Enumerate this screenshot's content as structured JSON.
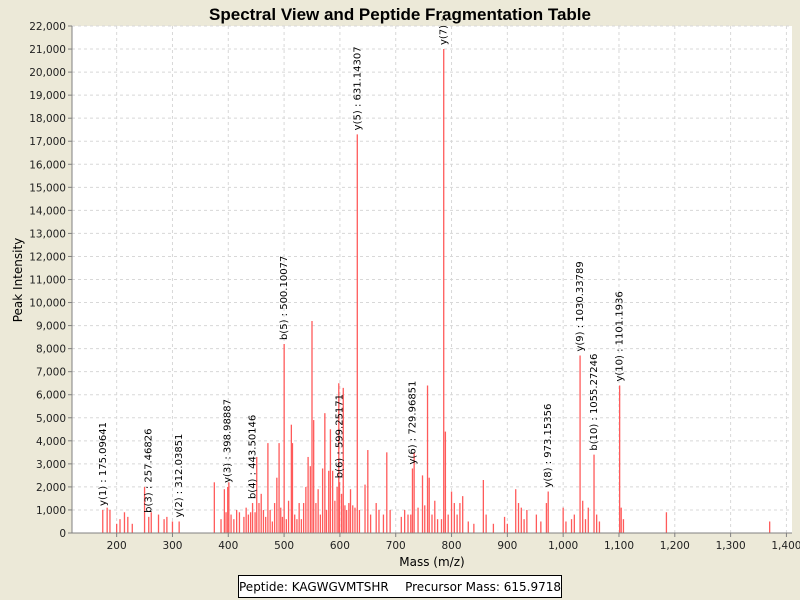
{
  "chart_data": {
    "type": "bar",
    "title": "Spectral View and Peptide Fragmentation Table",
    "xlabel": "Mass (m/z)",
    "ylabel": "Peak Intensity",
    "xlim": [
      120,
      1410
    ],
    "ylim": [
      0,
      22000
    ],
    "x_ticks": [
      200,
      300,
      400,
      500,
      600,
      700,
      800,
      900,
      1000,
      1100,
      1200,
      1300,
      1400
    ],
    "x_tick_labels": [
      "200",
      "300",
      "400",
      "500",
      "600",
      "700",
      "800",
      "900",
      "1,000",
      "1,100",
      "1,200",
      "1,300",
      "1,400"
    ],
    "y_ticks": [
      0,
      1000,
      2000,
      3000,
      4000,
      5000,
      6000,
      7000,
      8000,
      9000,
      10000,
      11000,
      12000,
      13000,
      14000,
      15000,
      16000,
      17000,
      18000,
      19000,
      20000,
      21000,
      22000
    ],
    "y_tick_labels": [
      "0",
      "1,000",
      "2,000",
      "3,000",
      "4,000",
      "5,000",
      "6,000",
      "7,000",
      "8,000",
      "9,000",
      "10,000",
      "11,000",
      "12,000",
      "13,000",
      "14,000",
      "15,000",
      "16,000",
      "17,000",
      "18,000",
      "19,000",
      "20,000",
      "21,000",
      "22,000"
    ],
    "grid": true,
    "bar_color": "#ff5a5a",
    "peaks": [
      [
        175.1,
        1000
      ],
      [
        183,
        1100
      ],
      [
        188,
        1000
      ],
      [
        200,
        400
      ],
      [
        206,
        600
      ],
      [
        214,
        900
      ],
      [
        220,
        700
      ],
      [
        228,
        400
      ],
      [
        250,
        2000
      ],
      [
        257.5,
        700
      ],
      [
        262,
        900
      ],
      [
        275,
        800
      ],
      [
        285,
        600
      ],
      [
        290,
        700
      ],
      [
        300,
        500
      ],
      [
        312,
        500
      ],
      [
        375,
        2200
      ],
      [
        387,
        600
      ],
      [
        393,
        1900
      ],
      [
        396,
        900
      ],
      [
        398.99,
        2000
      ],
      [
        401,
        2200
      ],
      [
        405,
        800
      ],
      [
        410,
        600
      ],
      [
        415,
        1000
      ],
      [
        420,
        900
      ],
      [
        428,
        700
      ],
      [
        432,
        1100
      ],
      [
        436,
        800
      ],
      [
        440,
        900
      ],
      [
        443.5,
        1300
      ],
      [
        448,
        900
      ],
      [
        451,
        3300
      ],
      [
        455,
        1300
      ],
      [
        459,
        1700
      ],
      [
        463,
        1000
      ],
      [
        467,
        700
      ],
      [
        471,
        3900
      ],
      [
        475,
        1000
      ],
      [
        479,
        500
      ],
      [
        483,
        1300
      ],
      [
        487,
        2400
      ],
      [
        491,
        3900
      ],
      [
        494,
        1100
      ],
      [
        497,
        700
      ],
      [
        500.1,
        8200
      ],
      [
        504,
        600
      ],
      [
        508,
        1400
      ],
      [
        513,
        4700
      ],
      [
        515,
        3900
      ],
      [
        519,
        800
      ],
      [
        523,
        600
      ],
      [
        527,
        1300
      ],
      [
        531,
        600
      ],
      [
        535,
        1300
      ],
      [
        539,
        2000
      ],
      [
        543,
        3300
      ],
      [
        547,
        2900
      ],
      [
        550,
        9200
      ],
      [
        553,
        4900
      ],
      [
        557,
        1300
      ],
      [
        561,
        1900
      ],
      [
        565,
        800
      ],
      [
        569,
        2800
      ],
      [
        573,
        5200
      ],
      [
        576,
        1000
      ],
      [
        580,
        2700
      ],
      [
        583,
        4500
      ],
      [
        587,
        2700
      ],
      [
        591,
        1400
      ],
      [
        595,
        2000
      ],
      [
        598,
        6500
      ],
      [
        599.3,
        2200
      ],
      [
        603,
        1700
      ],
      [
        606,
        6300
      ],
      [
        609,
        1200
      ],
      [
        612,
        1000
      ],
      [
        616,
        1300
      ],
      [
        619,
        1900
      ],
      [
        623,
        1200
      ],
      [
        627,
        1100
      ],
      [
        631.14,
        17300
      ],
      [
        635,
        1000
      ],
      [
        645,
        2100
      ],
      [
        650,
        3600
      ],
      [
        655,
        800
      ],
      [
        665,
        1300
      ],
      [
        670,
        1000
      ],
      [
        678,
        800
      ],
      [
        684,
        3500
      ],
      [
        690,
        1000
      ],
      [
        710,
        700
      ],
      [
        716,
        1000
      ],
      [
        722,
        800
      ],
      [
        727,
        800
      ],
      [
        729.97,
        2800
      ],
      [
        733,
        3500
      ],
      [
        740,
        1100
      ],
      [
        748,
        2500
      ],
      [
        752,
        1200
      ],
      [
        757,
        6400
      ],
      [
        760,
        2400
      ],
      [
        765,
        800
      ],
      [
        770,
        1400
      ],
      [
        775,
        600
      ],
      [
        782,
        600
      ],
      [
        786,
        21000
      ],
      [
        789,
        4400
      ],
      [
        794,
        800
      ],
      [
        800,
        1800
      ],
      [
        805,
        1300
      ],
      [
        810,
        800
      ],
      [
        815,
        1300
      ],
      [
        820,
        1600
      ],
      [
        830,
        500
      ],
      [
        840,
        400
      ],
      [
        857,
        2300
      ],
      [
        862,
        800
      ],
      [
        875,
        400
      ],
      [
        895,
        700
      ],
      [
        900,
        400
      ],
      [
        915,
        1900
      ],
      [
        920,
        1300
      ],
      [
        925,
        1100
      ],
      [
        930,
        600
      ],
      [
        935,
        1000
      ],
      [
        952,
        800
      ],
      [
        960,
        500
      ],
      [
        970,
        1300
      ],
      [
        973.2,
        1800
      ],
      [
        1000,
        1100
      ],
      [
        1005,
        500
      ],
      [
        1015,
        600
      ],
      [
        1020,
        800
      ],
      [
        1030.3,
        7700
      ],
      [
        1035,
        1400
      ],
      [
        1040,
        600
      ],
      [
        1045,
        1100
      ],
      [
        1055.3,
        3400
      ],
      [
        1060,
        800
      ],
      [
        1065,
        500
      ],
      [
        1101.2,
        6400
      ],
      [
        1104,
        1100
      ],
      [
        1108,
        600
      ],
      [
        1185,
        900
      ],
      [
        1370,
        500
      ]
    ],
    "annotations": [
      {
        "mz": 175.1,
        "intensity": 1000,
        "label": "y(1) : 175.09641"
      },
      {
        "mz": 257.5,
        "intensity": 700,
        "label": "b(3) : 257.46826"
      },
      {
        "mz": 312,
        "intensity": 500,
        "label": "y(2) : 312.03851"
      },
      {
        "mz": 398.99,
        "intensity": 2000,
        "label": "y(3) : 398.98887"
      },
      {
        "mz": 443.5,
        "intensity": 1300,
        "label": "b(4) : 443.50146"
      },
      {
        "mz": 500.1,
        "intensity": 8200,
        "label": "b(5) : 500.10077"
      },
      {
        "mz": 599.3,
        "intensity": 2200,
        "label": "b(6) : 599.25171"
      },
      {
        "mz": 631.14,
        "intensity": 17300,
        "label": "y(5) : 631.14307"
      },
      {
        "mz": 729.97,
        "intensity": 2800,
        "label": "y(6) : 729.96851"
      },
      {
        "mz": 786,
        "intensity": 21000,
        "label": "y(7) :"
      },
      {
        "mz": 973.2,
        "intensity": 1800,
        "label": "y(8) : 973.15356"
      },
      {
        "mz": 1030.3,
        "intensity": 7700,
        "label": "y(9) : 1030.33789"
      },
      {
        "mz": 1055.3,
        "intensity": 3400,
        "label": "b(10) : 1055.27246"
      },
      {
        "mz": 1101.2,
        "intensity": 6400,
        "label": "y(10) : 1101.1936"
      }
    ]
  },
  "legend": {
    "peptide": "Peptide: KAGWGVMTSHR",
    "precursor": "Precursor Mass: 615.9718"
  }
}
